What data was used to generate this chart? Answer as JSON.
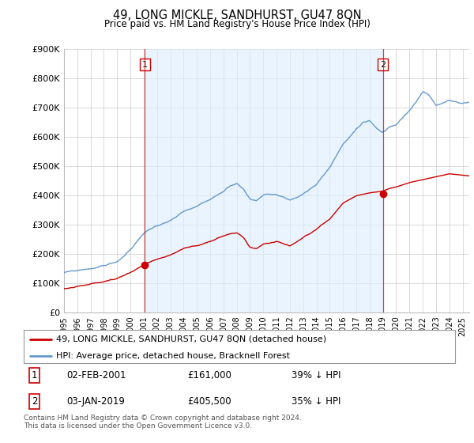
{
  "title": "49, LONG MICKLE, SANDHURST, GU47 8QN",
  "subtitle": "Price paid vs. HM Land Registry's House Price Index (HPI)",
  "ylabel_ticks": [
    "£0",
    "£100K",
    "£200K",
    "£300K",
    "£400K",
    "£500K",
    "£600K",
    "£700K",
    "£800K",
    "£900K"
  ],
  "ylim": [
    0,
    900000
  ],
  "xlim_start": 1995.0,
  "xlim_end": 2025.5,
  "marker1_x": 2001.085,
  "marker1_y": 161000,
  "marker2_x": 2019.0,
  "marker2_y": 405500,
  "line1_color": "#cc0000",
  "line2_color": "#6699cc",
  "vline_color": "#cc0000",
  "fill_color": "#ddeeff",
  "legend_line1": "49, LONG MICKLE, SANDHURST, GU47 8QN (detached house)",
  "legend_line2": "HPI: Average price, detached house, Bracknell Forest",
  "table_row1": [
    "1",
    "02-FEB-2001",
    "£161,000",
    "39% ↓ HPI"
  ],
  "table_row2": [
    "2",
    "03-JAN-2019",
    "£405,500",
    "35% ↓ HPI"
  ],
  "footer": "Contains HM Land Registry data © Crown copyright and database right 2024.\nThis data is licensed under the Open Government Licence v3.0.",
  "background_color": "#ffffff",
  "grid_color": "#cccccc"
}
